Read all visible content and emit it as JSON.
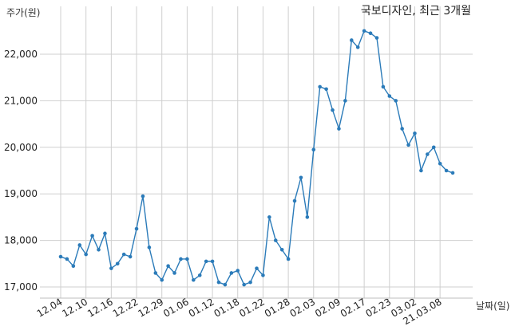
{
  "chart_data": {
    "type": "line",
    "title": "국보디자인, 최근 3개월",
    "ylabel": "주가(원)",
    "xlabel": "날짜(일)",
    "ylim": [
      16750,
      22900
    ],
    "y_ticks": [
      17000,
      18000,
      19000,
      20000,
      21000,
      22000
    ],
    "y_tick_labels": [
      "17,000",
      "18,000",
      "19,000",
      "20,000",
      "21,000",
      "22,000"
    ],
    "x_tick_labels": [
      "12.04",
      "12.10",
      "12.16",
      "12.22",
      "12.29",
      "01.06",
      "01.12",
      "01.18",
      "01.22",
      "01.28",
      "02.03",
      "02.09",
      "02.17",
      "02.23",
      "03.02",
      "21.03.08"
    ],
    "x_tick_every": 4,
    "grid": true,
    "color": "#2b7bb9",
    "series": [
      {
        "values": [
          17650,
          17600,
          17450,
          17900,
          17700,
          18100,
          17800,
          18150,
          17400,
          17500,
          17700,
          17650,
          18250,
          18950,
          17850,
          17300,
          17150,
          17450,
          17300,
          17600,
          17600,
          17150,
          17250,
          17550,
          17550,
          17100,
          17050,
          17300,
          17350,
          17050,
          17100,
          17400,
          17250,
          18500,
          18000,
          17800,
          17600,
          18850,
          19350,
          18500,
          19950,
          21300,
          21250,
          20800,
          20400,
          21000,
          22300,
          22150,
          22500,
          22450,
          22350,
          21300,
          21100,
          21000,
          20400,
          20050,
          20300,
          19500,
          19850,
          20000,
          19650,
          19500,
          19450
        ]
      }
    ]
  }
}
